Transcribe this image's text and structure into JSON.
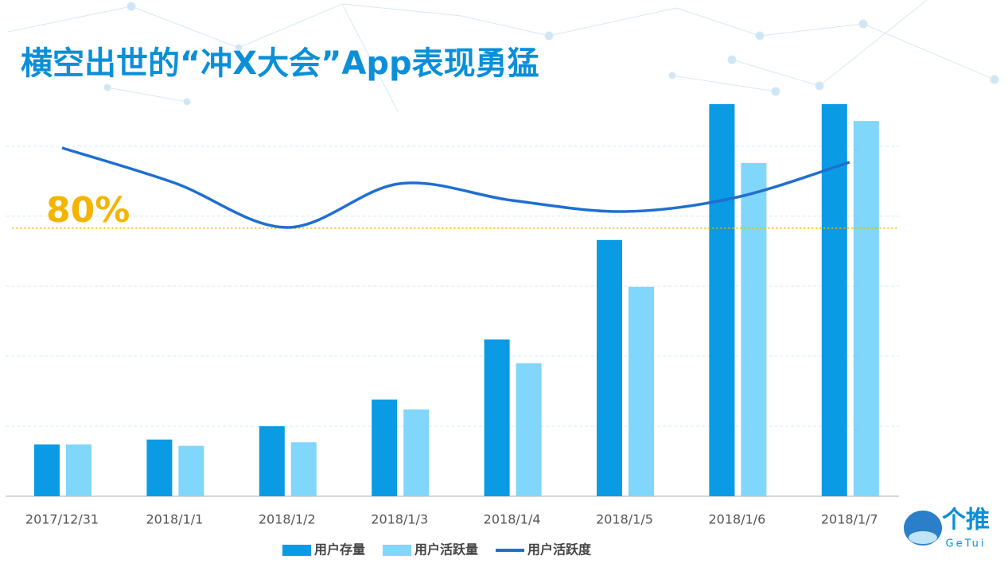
{
  "chart_data": {
    "type": "bar_line",
    "title": "横空出世的“冲X大会”App表现勇猛",
    "categories": [
      "2017/12/31",
      "2018/1/1",
      "2018/1/2",
      "2018/1/3",
      "2018/1/4",
      "2018/1/5",
      "2018/1/6",
      "2018/1/7"
    ],
    "series": [
      {
        "name": "用户存量",
        "color": "#0a9be4",
        "type": "bar",
        "values": [
          0.74,
          0.81,
          1.0,
          1.38,
          2.24,
          3.66,
          5.6,
          5.6
        ]
      },
      {
        "name": "用户活跃量",
        "color": "#80d6fb",
        "type": "bar",
        "values": [
          0.74,
          0.72,
          0.77,
          1.24,
          1.9,
          2.99,
          4.76,
          5.36
        ]
      },
      {
        "name": "用户活跃度",
        "color": "#1f6fd0",
        "type": "line",
        "axis": "y2",
        "values": [
          90.1,
          85.7,
          80.1,
          85.6,
          83.5,
          82.1,
          83.9,
          88.3
        ]
      }
    ],
    "ylim": [
      0,
      5.6
    ],
    "gridlines": [
      1,
      2,
      3,
      4,
      5
    ],
    "y2lim": [
      46.3,
      95.6
    ],
    "annotations": [
      {
        "text": "80%",
        "value": 80,
        "axis": "y2",
        "color": "#f5b400"
      }
    ],
    "legend": "bottom",
    "logo": {
      "name": "个推",
      "sub": "GeTui"
    }
  }
}
